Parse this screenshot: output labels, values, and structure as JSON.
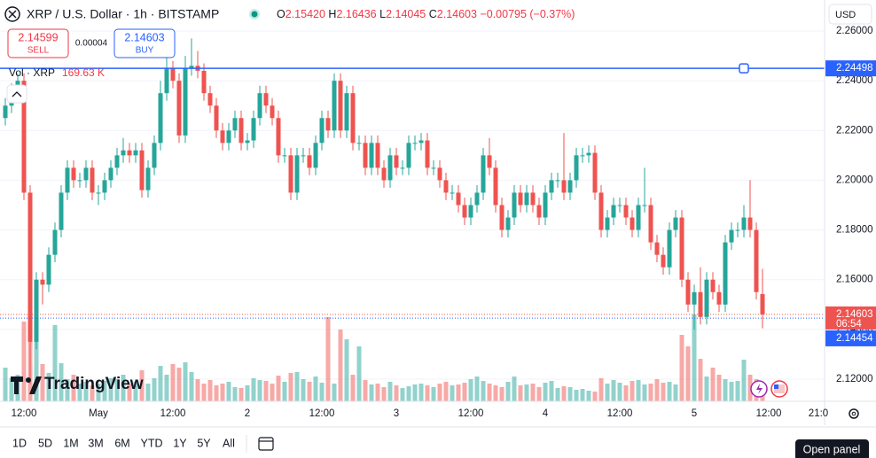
{
  "header": {
    "symbol": "XRP / U.S. Dollar · 1h · BITSTAMP",
    "ohlc": [
      {
        "key": "O",
        "value": "2.15420"
      },
      {
        "key": "H",
        "value": "2.16436"
      },
      {
        "key": "L",
        "value": "2.14045"
      },
      {
        "key": "C",
        "value": "2.14603"
      }
    ],
    "change": "−0.00795 (−0.37%)"
  },
  "trade": {
    "sell": {
      "price": "2.14599",
      "label": "SELL"
    },
    "spread": "0.00004",
    "buy": {
      "price": "2.14603",
      "label": "BUY"
    }
  },
  "currency": "USD",
  "logo": "TradingView",
  "ranges": [
    "1D",
    "5D",
    "1M",
    "3M",
    "6M",
    "YTD",
    "1Y",
    "5Y",
    "All"
  ],
  "open_panel": "Open panel",
  "chart_data": {
    "type": "candlestick",
    "up_color": "#26a69a",
    "down_color": "#ef5350",
    "volume_legend": {
      "name": "Vol · XRP",
      "value": "169.63 K"
    },
    "countdown": "06:54",
    "categories": [
      null,
      null,
      null,
      "12:00",
      null,
      null,
      null,
      null,
      null,
      null,
      null,
      null,
      null,
      null,
      null,
      "May",
      null,
      null,
      null,
      null,
      null,
      null,
      null,
      null,
      null,
      null,
      null,
      "12:00",
      null,
      null,
      null,
      null,
      null,
      null,
      null,
      null,
      null,
      null,
      null,
      "2",
      null,
      null,
      null,
      null,
      null,
      null,
      null,
      null,
      null,
      null,
      null,
      "12:00",
      null,
      null,
      null,
      null,
      null,
      null,
      null,
      null,
      null,
      null,
      null,
      "3",
      null,
      null,
      null,
      null,
      null,
      null,
      null,
      null,
      null,
      null,
      null,
      "12:00",
      null,
      null,
      null,
      null,
      null,
      null,
      null,
      null,
      null,
      null,
      null,
      "4",
      null,
      null,
      null,
      null,
      null,
      null,
      null,
      null,
      null,
      null,
      null,
      "12:00",
      null,
      null,
      null,
      null,
      null,
      null,
      null,
      null,
      null,
      null,
      null,
      "5",
      null,
      null,
      null,
      null,
      null,
      null,
      null,
      null,
      null,
      null,
      null,
      "12:00",
      null,
      null,
      null,
      null,
      null,
      null,
      null,
      "21:0",
      null
    ],
    "open": [
      2.225,
      2.23,
      2.236,
      2.24,
      2.195,
      2.135,
      2.16,
      2.158,
      2.17,
      2.18,
      2.195,
      2.205,
      2.2,
      2.2,
      2.205,
      2.195,
      2.195,
      2.2,
      2.205,
      2.21,
      2.212,
      2.21,
      2.212,
      2.196,
      2.205,
      2.215,
      2.235,
      2.245,
      2.24,
      2.218,
      2.245,
      2.246,
      2.244,
      2.235,
      2.23,
      2.22,
      2.215,
      2.22,
      2.225,
      2.215,
      2.216,
      2.225,
      2.235,
      2.23,
      2.225,
      2.21,
      2.21,
      2.195,
      2.21,
      2.21,
      2.205,
      2.215,
      2.225,
      2.22,
      2.24,
      2.22,
      2.235,
      2.215,
      2.215,
      2.205,
      2.215,
      2.205,
      2.2,
      2.21,
      2.205,
      2.205,
      2.215,
      2.215,
      2.216,
      2.205,
      2.205,
      2.2,
      2.195,
      2.195,
      2.19,
      2.185,
      2.19,
      2.195,
      2.21,
      2.205,
      2.19,
      2.18,
      2.185,
      2.195,
      2.19,
      2.195,
      2.19,
      2.185,
      2.195,
      2.2,
      2.2,
      2.195,
      2.2,
      2.21,
      2.21,
      2.211,
      2.195,
      2.18,
      2.185,
      2.19,
      2.19,
      2.185,
      2.18,
      2.19,
      2.19,
      2.175,
      2.17,
      2.165,
      2.18,
      2.185,
      2.16,
      2.15,
      2.155,
      2.145,
      2.16,
      2.155,
      2.15,
      2.175,
      2.18,
      2.18,
      2.185,
      2.18,
      2.1542,
      null,
      null,
      null,
      null,
      null,
      null,
      null,
      null,
      null,
      null
    ],
    "high": [
      2.233,
      2.239,
      2.243,
      2.243,
      2.198,
      2.163,
      2.163,
      2.173,
      2.183,
      2.198,
      2.208,
      2.208,
      2.203,
      2.208,
      2.208,
      2.198,
      2.203,
      2.208,
      2.213,
      2.217,
      2.215,
      2.215,
      2.215,
      2.208,
      2.218,
      2.24,
      2.25,
      2.248,
      2.243,
      2.25,
      2.257,
      2.252,
      2.247,
      2.238,
      2.233,
      2.223,
      2.223,
      2.228,
      2.228,
      2.219,
      2.228,
      2.238,
      2.238,
      2.233,
      2.228,
      2.213,
      2.213,
      2.213,
      2.213,
      2.213,
      2.218,
      2.228,
      2.228,
      2.243,
      2.243,
      2.238,
      2.238,
      2.218,
      2.218,
      2.218,
      2.218,
      2.208,
      2.213,
      2.213,
      2.208,
      2.218,
      2.218,
      2.219,
      2.219,
      2.208,
      2.208,
      2.203,
      2.198,
      2.198,
      2.193,
      2.193,
      2.198,
      2.213,
      2.217,
      2.208,
      2.193,
      2.188,
      2.198,
      2.198,
      2.198,
      2.198,
      2.193,
      2.198,
      2.203,
      2.203,
      2.219,
      2.203,
      2.213,
      2.213,
      2.214,
      2.214,
      2.198,
      2.188,
      2.193,
      2.193,
      2.193,
      2.188,
      2.193,
      2.205,
      2.193,
      2.178,
      2.173,
      2.183,
      2.188,
      2.188,
      2.163,
      2.158,
      2.165,
      2.163,
      2.163,
      2.158,
      2.178,
      2.183,
      2.183,
      2.19,
      2.2,
      2.183,
      2.16436,
      null,
      null,
      null,
      null,
      null,
      null,
      null,
      null,
      null,
      null
    ],
    "low": [
      2.222,
      2.227,
      2.233,
      2.192,
      2.118,
      2.132,
      2.15,
      2.155,
      2.167,
      2.177,
      2.192,
      2.197,
      2.197,
      2.197,
      2.192,
      2.19,
      2.192,
      2.197,
      2.202,
      2.207,
      2.207,
      2.207,
      2.193,
      2.193,
      2.202,
      2.212,
      2.232,
      2.237,
      2.215,
      2.215,
      2.242,
      2.241,
      2.232,
      2.227,
      2.217,
      2.212,
      2.212,
      2.217,
      2.212,
      2.212,
      2.213,
      2.222,
      2.227,
      2.222,
      2.207,
      2.207,
      2.192,
      2.192,
      2.207,
      2.202,
      2.202,
      2.212,
      2.217,
      2.217,
      2.217,
      2.217,
      2.212,
      2.212,
      2.202,
      2.202,
      2.202,
      2.197,
      2.197,
      2.202,
      2.202,
      2.202,
      2.212,
      2.212,
      2.202,
      2.202,
      2.197,
      2.192,
      2.192,
      2.187,
      2.182,
      2.182,
      2.187,
      2.192,
      2.202,
      2.187,
      2.177,
      2.177,
      2.182,
      2.187,
      2.187,
      2.187,
      2.182,
      2.182,
      2.192,
      2.197,
      2.192,
      2.192,
      2.197,
      2.207,
      2.207,
      2.192,
      2.177,
      2.177,
      2.182,
      2.187,
      2.182,
      2.177,
      2.177,
      2.187,
      2.172,
      2.167,
      2.162,
      2.162,
      2.177,
      2.157,
      2.147,
      2.14,
      2.142,
      2.142,
      2.152,
      2.147,
      2.147,
      2.172,
      2.177,
      2.177,
      2.177,
      2.152,
      2.14045,
      null,
      null,
      null,
      null,
      null,
      null,
      null,
      null,
      null,
      null
    ],
    "close": [
      2.23,
      2.236,
      2.24,
      2.195,
      2.135,
      2.16,
      2.158,
      2.17,
      2.18,
      2.195,
      2.205,
      2.2,
      2.2,
      2.205,
      2.195,
      2.195,
      2.2,
      2.205,
      2.21,
      2.212,
      2.21,
      2.212,
      2.196,
      2.205,
      2.215,
      2.235,
      2.245,
      2.24,
      2.218,
      2.245,
      2.246,
      2.244,
      2.235,
      2.23,
      2.22,
      2.215,
      2.22,
      2.225,
      2.215,
      2.216,
      2.225,
      2.235,
      2.23,
      2.225,
      2.21,
      2.21,
      2.195,
      2.21,
      2.21,
      2.205,
      2.215,
      2.225,
      2.22,
      2.24,
      2.22,
      2.235,
      2.215,
      2.215,
      2.205,
      2.215,
      2.205,
      2.2,
      2.21,
      2.205,
      2.205,
      2.215,
      2.215,
      2.216,
      2.205,
      2.205,
      2.2,
      2.195,
      2.195,
      2.19,
      2.185,
      2.19,
      2.195,
      2.21,
      2.205,
      2.19,
      2.18,
      2.185,
      2.195,
      2.19,
      2.195,
      2.19,
      2.185,
      2.195,
      2.2,
      2.2,
      2.195,
      2.2,
      2.21,
      2.21,
      2.211,
      2.195,
      2.18,
      2.185,
      2.19,
      2.19,
      2.185,
      2.18,
      2.19,
      2.19,
      2.175,
      2.17,
      2.165,
      2.18,
      2.185,
      2.16,
      2.15,
      2.155,
      2.145,
      2.16,
      2.155,
      2.15,
      2.175,
      2.18,
      2.18,
      2.185,
      2.18,
      2.155,
      2.14603,
      null,
      null,
      null,
      null,
      null,
      null,
      null,
      null,
      null,
      null
    ],
    "volume": [
      380,
      260,
      300,
      900,
      800,
      1000,
      420,
      320,
      860,
      430,
      250,
      300,
      200,
      220,
      180,
      200,
      230,
      260,
      250,
      300,
      200,
      220,
      350,
      200,
      260,
      400,
      300,
      420,
      380,
      440,
      330,
      250,
      200,
      240,
      180,
      200,
      220,
      160,
      150,
      180,
      260,
      240,
      230,
      200,
      290,
      220,
      320,
      330,
      250,
      220,
      280,
      210,
      950,
      200,
      810,
      700,
      300,
      620,
      240,
      190,
      200,
      160,
      220,
      180,
      150,
      170,
      190,
      200,
      180,
      160,
      200,
      220,
      180,
      190,
      210,
      250,
      280,
      230,
      200,
      180,
      160,
      220,
      280,
      180,
      190,
      200,
      160,
      210,
      230,
      150,
      170,
      160,
      130,
      140,
      120,
      110,
      260,
      200,
      240,
      210,
      180,
      230,
      240,
      190,
      200,
      250,
      210,
      220,
      190,
      750,
      620,
      980,
      480,
      280,
      380,
      300,
      250,
      220,
      230,
      470,
      300,
      250,
      169.63,
      null,
      null,
      null,
      null,
      null,
      null,
      null,
      null,
      null,
      null
    ],
    "ylim": [
      2.11109,
      2.27247
    ],
    "yticks": [
      {
        "value": 2.12,
        "label": "2.12000"
      },
      {
        "value": 2.14,
        "label": "2.14000"
      },
      {
        "value": 2.16,
        "label": "2.16000"
      },
      {
        "value": 2.18,
        "label": "2.18000"
      },
      {
        "value": 2.2,
        "label": "2.20000"
      },
      {
        "value": 2.22,
        "label": "2.22000"
      },
      {
        "value": 2.24,
        "label": "2.24000"
      },
      {
        "value": 2.26,
        "label": "2.26000"
      }
    ],
    "grid": true,
    "price_lines": [
      {
        "value": 2.24498,
        "label": "2.24498",
        "color": "#2962ff",
        "style": "solid"
      },
      {
        "value": 2.14603,
        "label": "2.14603",
        "color": "#ef5350",
        "style": "dotted"
      },
      {
        "value": 2.14454,
        "label": "2.14454",
        "color": "#2962ff",
        "style": "dotted"
      }
    ]
  }
}
